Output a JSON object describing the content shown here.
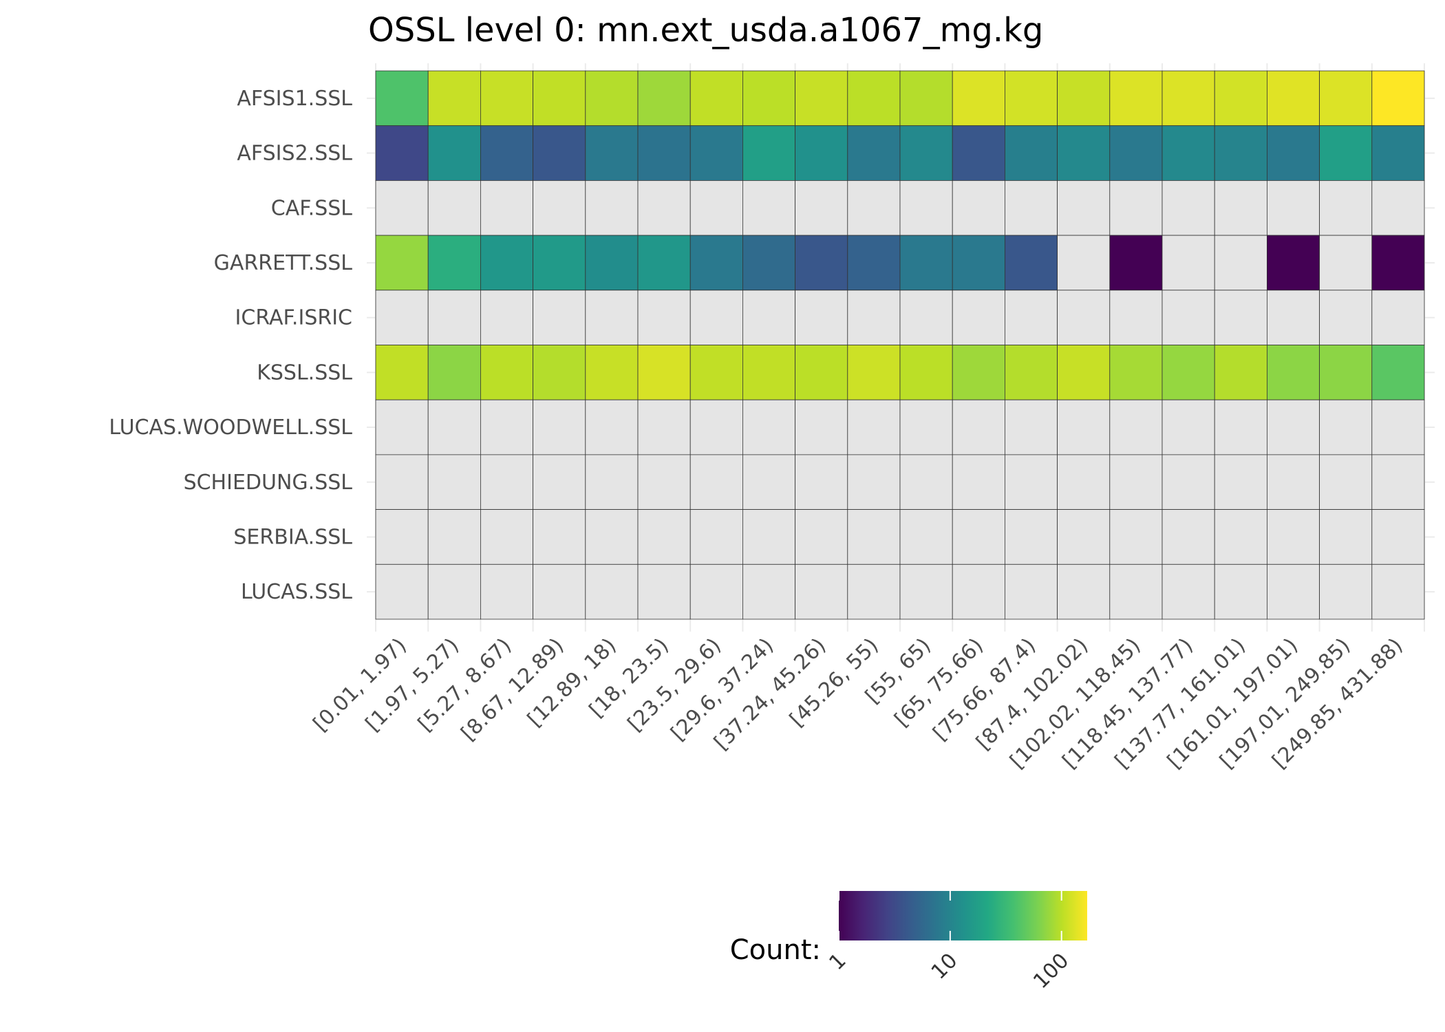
{
  "chart_data": {
    "type": "heatmap",
    "title": "OSSL level 0: mn.ext_usda.a1067_mg.kg",
    "xlabel": "",
    "ylabel": "",
    "x_categories": [
      "[0.01, 1.97)",
      "[1.97, 5.27)",
      "[5.27, 8.67)",
      "[8.67, 12.89)",
      "[12.89, 18)",
      "[18, 23.5)",
      "[23.5, 29.6)",
      "[29.6, 37.24)",
      "[37.24, 45.26)",
      "[45.26, 55)",
      "[55, 65)",
      "[65, 75.66)",
      "[75.66, 87.4)",
      "[87.4, 102.02)",
      "[102.02, 118.45)",
      "[118.45, 137.77)",
      "[137.77, 161.01)",
      "[161.01, 197.01)",
      "[197.01, 249.85)",
      "[249.85, 431.88)"
    ],
    "y_categories": [
      "AFSIS1.SSL",
      "AFSIS2.SSL",
      "CAF.SSL",
      "GARRETT.SSL",
      "ICRAF.ISRIC",
      "KSSL.SSL",
      "LUCAS.WOODWELL.SSL",
      "SCHIEDUNG.SSL",
      "SERBIA.SSL",
      "LUCAS.SSL"
    ],
    "values": [
      [
        40,
        110,
        110,
        105,
        95,
        80,
        105,
        100,
        110,
        100,
        95,
        130,
        120,
        110,
        130,
        130,
        120,
        135,
        130,
        170
      ],
      [
        3,
        13,
        5,
        4,
        8,
        7,
        8,
        18,
        13,
        8,
        11,
        4,
        9,
        11,
        8,
        11,
        10,
        8,
        18,
        9
      ],
      [
        null,
        null,
        null,
        null,
        null,
        null,
        null,
        null,
        null,
        null,
        null,
        null,
        null,
        null,
        null,
        null,
        null,
        null,
        null,
        null
      ],
      [
        75,
        25,
        15,
        16,
        12,
        15,
        8,
        6,
        4,
        5,
        8,
        8,
        4,
        null,
        1,
        null,
        null,
        1,
        null,
        1
      ],
      [
        null,
        null,
        null,
        null,
        null,
        null,
        null,
        null,
        null,
        null,
        null,
        null,
        null,
        null,
        null,
        null,
        null,
        null,
        null,
        null
      ],
      [
        105,
        70,
        100,
        95,
        110,
        125,
        105,
        105,
        100,
        115,
        100,
        80,
        95,
        110,
        85,
        75,
        95,
        70,
        70,
        45
      ],
      [
        null,
        null,
        null,
        null,
        null,
        null,
        null,
        null,
        null,
        null,
        null,
        null,
        null,
        null,
        null,
        null,
        null,
        null,
        null,
        null
      ],
      [
        null,
        null,
        null,
        null,
        null,
        null,
        null,
        null,
        null,
        null,
        null,
        null,
        null,
        null,
        null,
        null,
        null,
        null,
        null,
        null
      ],
      [
        null,
        null,
        null,
        null,
        null,
        null,
        null,
        null,
        null,
        null,
        null,
        null,
        null,
        null,
        null,
        null,
        null,
        null,
        null,
        null
      ],
      [
        null,
        null,
        null,
        null,
        null,
        null,
        null,
        null,
        null,
        null,
        null,
        null,
        null,
        null,
        null,
        null,
        null,
        null,
        null,
        null
      ]
    ],
    "colorbar": {
      "title": "Count:",
      "scale": "log10",
      "range": [
        1,
        170
      ],
      "ticks": [
        1,
        10,
        100
      ],
      "tick_labels": [
        "1",
        "10",
        "100"
      ],
      "palette": "viridis",
      "placement": "bottom"
    },
    "missing_color": "#e5e5e5"
  }
}
